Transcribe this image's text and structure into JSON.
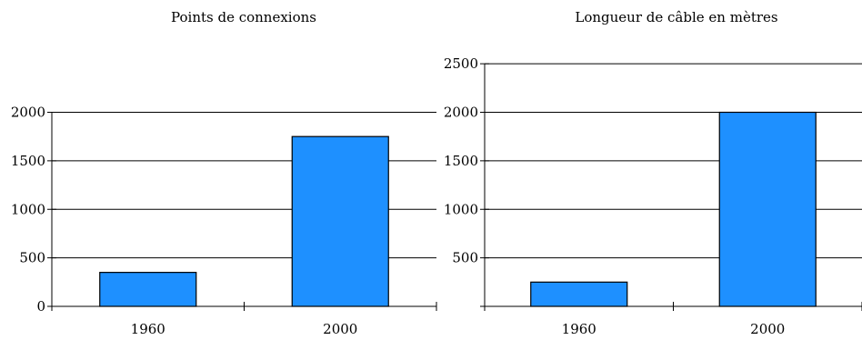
{
  "chart_data": [
    {
      "type": "bar",
      "title": "Points de connexions",
      "categories": [
        "1960",
        "2000"
      ],
      "values": [
        350,
        1750
      ],
      "ylim": [
        0,
        2000
      ],
      "yticks": [
        0,
        500,
        1000,
        1500,
        2000
      ],
      "ytick_labels": [
        "0",
        "500",
        "1000",
        "1500",
        "2000"
      ],
      "grid": true,
      "bar_color": "#1e90ff"
    },
    {
      "type": "bar",
      "title": "Longueur de câble en mètres",
      "categories": [
        "1960",
        "2000"
      ],
      "values": [
        250,
        2000
      ],
      "ylim": [
        0,
        2500
      ],
      "yticks": [
        0,
        500,
        1000,
        1500,
        2000,
        2500
      ],
      "ytick_labels": [
        "",
        "500",
        "1000",
        "1500",
        "2000",
        "2500"
      ],
      "grid": true,
      "bar_color": "#1e90ff"
    }
  ]
}
